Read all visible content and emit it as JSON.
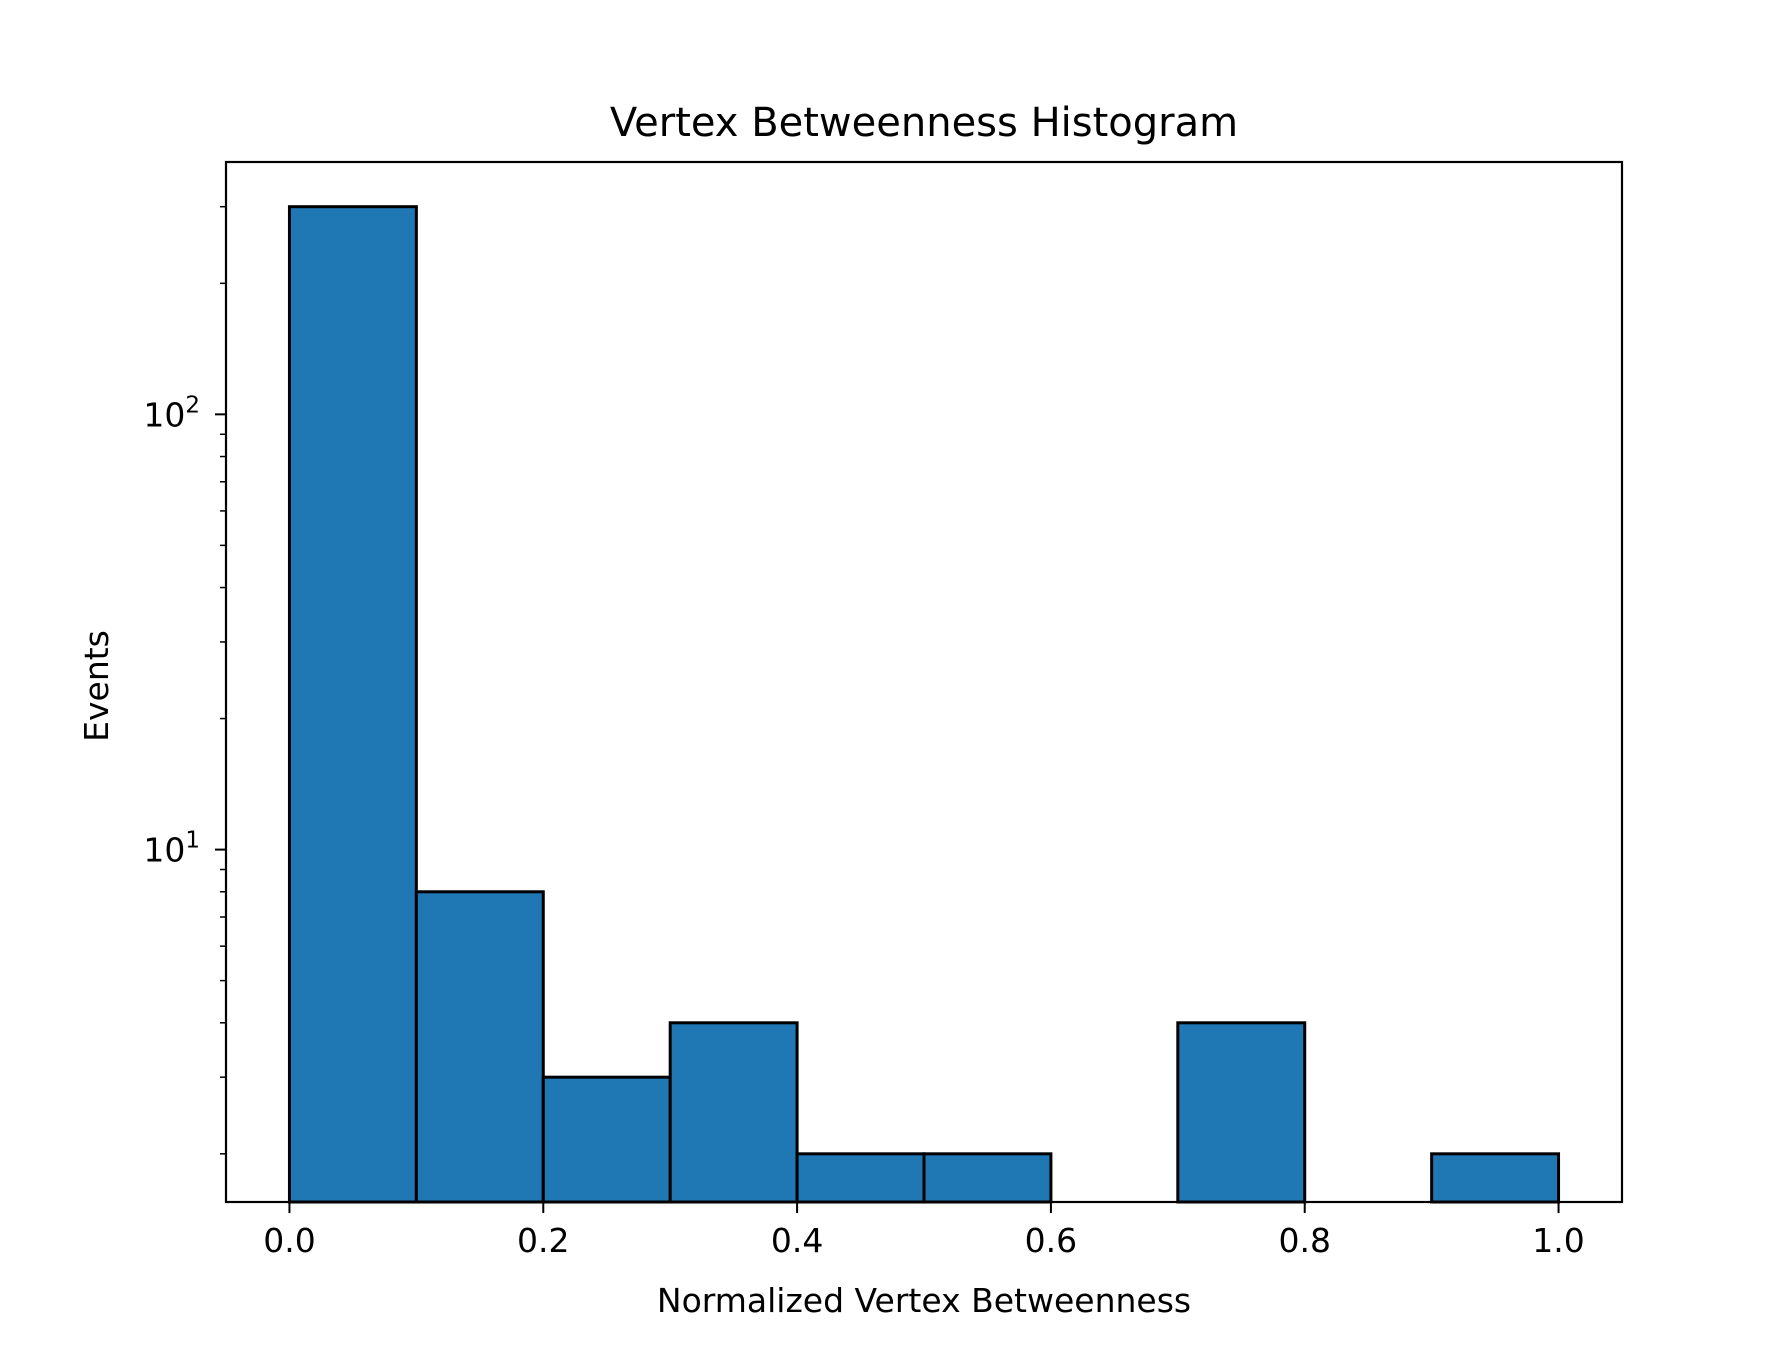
{
  "chart_data": {
    "type": "bar",
    "title": "Vertex Betweenness Histogram",
    "xlabel": "Normalized Vertex Betweenness",
    "ylabel": "Events",
    "xlim": [
      -0.05,
      1.05
    ],
    "ylim": [
      1.55,
      380
    ],
    "yscale": "log",
    "grid": false,
    "bar_color": "#1f77b4",
    "edge_color": "#000000",
    "bins": [
      {
        "x0": 0.0,
        "x1": 0.1,
        "value": 300
      },
      {
        "x0": 0.1,
        "x1": 0.2,
        "value": 8
      },
      {
        "x0": 0.2,
        "x1": 0.3,
        "value": 3
      },
      {
        "x0": 0.3,
        "x1": 0.4,
        "value": 4
      },
      {
        "x0": 0.4,
        "x1": 0.5,
        "value": 2
      },
      {
        "x0": 0.5,
        "x1": 0.6,
        "value": 2
      },
      {
        "x0": 0.6,
        "x1": 0.7,
        "value": 0
      },
      {
        "x0": 0.7,
        "x1": 0.8,
        "value": 4
      },
      {
        "x0": 0.8,
        "x1": 0.9,
        "value": 0
      },
      {
        "x0": 0.9,
        "x1": 1.0,
        "value": 2
      }
    ],
    "x_ticks": [
      {
        "value": 0.0,
        "label": "0.0"
      },
      {
        "value": 0.2,
        "label": "0.2"
      },
      {
        "value": 0.4,
        "label": "0.4"
      },
      {
        "value": 0.6,
        "label": "0.6"
      },
      {
        "value": 0.8,
        "label": "0.8"
      },
      {
        "value": 1.0,
        "label": "1.0"
      }
    ],
    "y_major_ticks": [
      {
        "value": 10,
        "base": "10",
        "exponent": "1"
      },
      {
        "value": 100,
        "base": "10",
        "exponent": "2"
      }
    ],
    "y_minor_ticks": [
      2,
      3,
      4,
      5,
      6,
      7,
      8,
      9,
      20,
      30,
      40,
      50,
      60,
      70,
      80,
      90,
      200,
      300
    ]
  }
}
